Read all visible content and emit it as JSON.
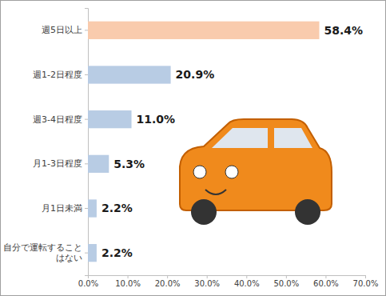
{
  "chart_data": {
    "type": "bar",
    "orientation": "horizontal",
    "categories": [
      "週5日以上",
      "週1-2日程度",
      "週3-4日程度",
      "月1-3日程度",
      "月1日未満",
      "自分で運転することはない"
    ],
    "values": [
      58.4,
      20.9,
      11.0,
      5.3,
      2.2,
      2.2
    ],
    "value_labels": [
      "58.4%",
      "20.9%",
      "11.0%",
      "5.3%",
      "2.2%",
      "2.2%"
    ],
    "colors": [
      "#f9cbad",
      "#b8cce4",
      "#b8cce4",
      "#b8cce4",
      "#b8cce4",
      "#b8cce4"
    ],
    "xlim": [
      0,
      70
    ],
    "xticks": [
      {
        "value": 0,
        "label": "0.0%"
      },
      {
        "value": 10,
        "label": "10.0%"
      },
      {
        "value": 20,
        "label": "20.0%"
      },
      {
        "value": 30,
        "label": "30.0%"
      },
      {
        "value": 40,
        "label": "40.0%"
      },
      {
        "value": 50,
        "label": "50.0%"
      },
      {
        "value": 60,
        "label": "60.0%"
      },
      {
        "value": 70,
        "label": "70.0%"
      }
    ],
    "data_labels": true,
    "grid": false
  }
}
